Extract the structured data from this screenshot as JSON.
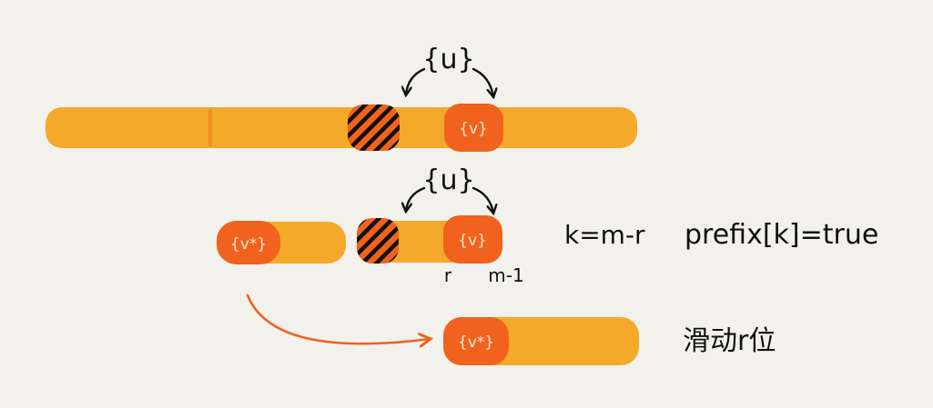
{
  "colors": {
    "background": "#f3f1ec",
    "bar": "#f4a92a",
    "highlight": "#f0621d",
    "ink": "#111111",
    "block_text": "#fbe9d4",
    "slide_arrow": "#f0621d"
  },
  "labels": {
    "u_top": "{u}",
    "u_middle": "{u}",
    "v_top": "{v}",
    "v_middle": "{v}",
    "vstar_middle": "{v*}",
    "vstar_bottom": "{v*}",
    "r_marker": "r",
    "m1_marker": "m-1",
    "k_formula": "k=m-r",
    "prefix_formula": "prefix[k]=true",
    "slide_caption": "滑动r位"
  }
}
